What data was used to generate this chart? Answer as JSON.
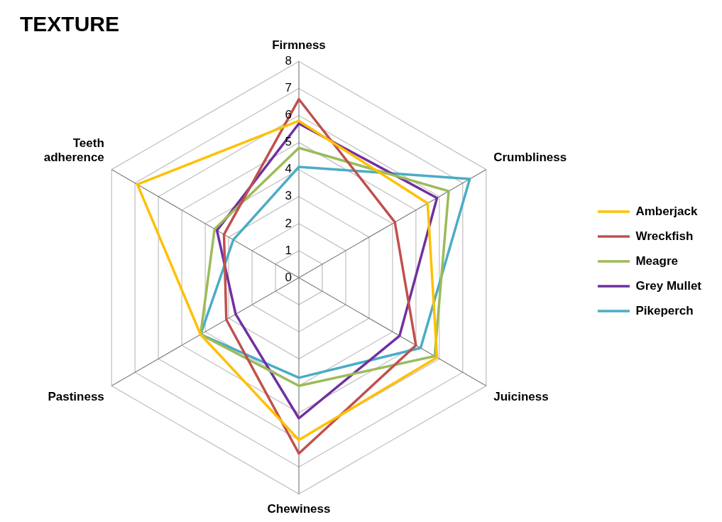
{
  "chart_data": {
    "type": "radar",
    "title": "TEXTURE",
    "categories": [
      "Firmness",
      "Crumbliness",
      "Juiciness",
      "Chewiness",
      "Pastiness",
      "Teeth adherence"
    ],
    "series": [
      {
        "name": "Amberjack",
        "color": "#ffc000",
        "values": [
          5.8,
          5.5,
          5.9,
          6.0,
          4.2,
          6.9
        ]
      },
      {
        "name": "Wreckfish",
        "color": "#c0504d",
        "values": [
          6.6,
          4.1,
          5.0,
          6.5,
          3.1,
          3.2
        ]
      },
      {
        "name": "Meagre",
        "color": "#9bbb59",
        "values": [
          4.8,
          6.4,
          5.8,
          4.0,
          4.2,
          3.6
        ]
      },
      {
        "name": "Grey Mullet",
        "color": "#7030a0",
        "values": [
          5.7,
          5.9,
          4.3,
          5.2,
          2.7,
          3.5
        ]
      },
      {
        "name": "Pikeperch",
        "color": "#4bacc6",
        "values": [
          4.1,
          7.3,
          5.2,
          3.7,
          4.2,
          2.8
        ]
      }
    ],
    "ylim": [
      0,
      8
    ],
    "yticks": [
      0,
      1,
      2,
      3,
      4,
      5,
      6,
      7,
      8
    ],
    "grid": true,
    "legend": "right",
    "marker": "none"
  }
}
